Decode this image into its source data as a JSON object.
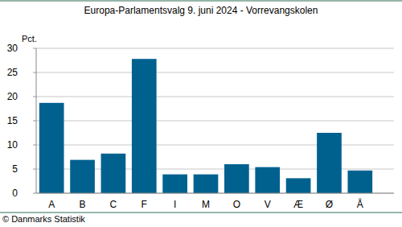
{
  "chart_data": {
    "type": "bar",
    "title": "Europa-Parlamentsvalg 9. juni 2024 - Vorrevangskolen",
    "y_label": "Pct.",
    "source": "© Danmarks Statistik",
    "categories": [
      "A",
      "B",
      "C",
      "F",
      "I",
      "M",
      "O",
      "V",
      "Æ",
      "Ø",
      "Å"
    ],
    "values": [
      18.7,
      6.9,
      8.2,
      27.8,
      3.9,
      3.9,
      6.0,
      5.4,
      3.1,
      12.5,
      4.7
    ],
    "color": "#00618f",
    "ylim": [
      0,
      30
    ],
    "yticks": [
      0,
      5,
      10,
      15,
      20,
      25,
      30
    ],
    "grid": true
  }
}
